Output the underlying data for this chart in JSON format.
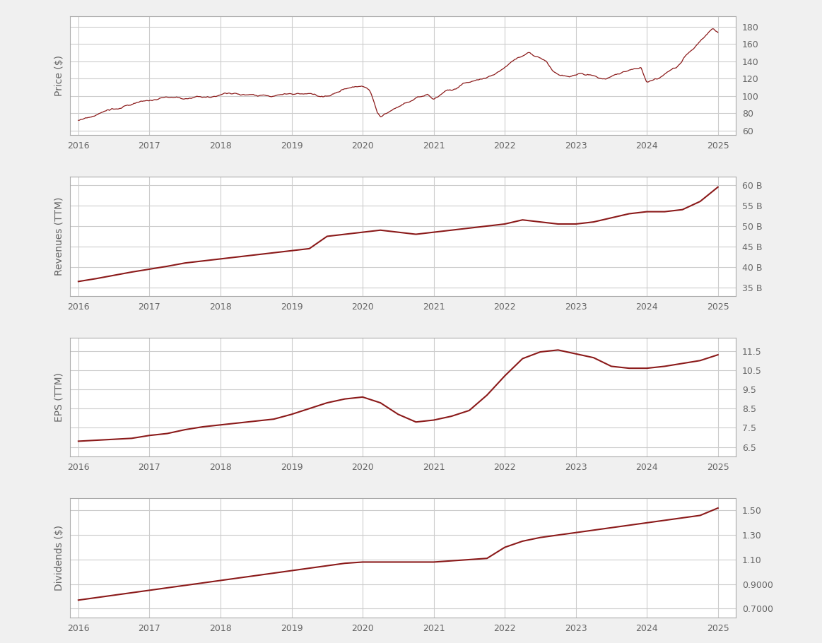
{
  "line_color": "#8B1A1A",
  "bg_color": "#f0f0f0",
  "panel_bg": "#ffffff",
  "grid_color": "#cccccc",
  "text_color": "#666666",
  "price": {
    "ylabel": "Price ($)",
    "yticks": [
      60,
      80,
      100,
      120,
      140,
      160,
      180
    ],
    "ylim": [
      55,
      192
    ],
    "noise_seed": 42,
    "base_x": [
      2016.0,
      2016.083,
      2016.167,
      2016.25,
      2016.333,
      2016.417,
      2016.5,
      2016.583,
      2016.667,
      2016.75,
      2016.833,
      2016.917,
      2017.0,
      2017.083,
      2017.167,
      2017.25,
      2017.333,
      2017.417,
      2017.5,
      2017.583,
      2017.667,
      2017.75,
      2017.833,
      2017.917,
      2018.0,
      2018.083,
      2018.167,
      2018.25,
      2018.333,
      2018.417,
      2018.5,
      2018.583,
      2018.667,
      2018.75,
      2018.833,
      2018.917,
      2019.0,
      2019.083,
      2019.167,
      2019.25,
      2019.333,
      2019.417,
      2019.5,
      2019.583,
      2019.667,
      2019.75,
      2019.833,
      2019.917,
      2020.0,
      2020.042,
      2020.083,
      2020.125,
      2020.167,
      2020.208,
      2020.25,
      2020.292,
      2020.333,
      2020.375,
      2020.417,
      2020.458,
      2020.5,
      2020.583,
      2020.667,
      2020.75,
      2020.833,
      2020.917,
      2021.0,
      2021.083,
      2021.167,
      2021.25,
      2021.333,
      2021.417,
      2021.5,
      2021.583,
      2021.667,
      2021.75,
      2021.833,
      2021.917,
      2022.0,
      2022.083,
      2022.167,
      2022.25,
      2022.333,
      2022.417,
      2022.5,
      2022.583,
      2022.667,
      2022.75,
      2022.833,
      2022.917,
      2023.0,
      2023.083,
      2023.167,
      2023.25,
      2023.333,
      2023.417,
      2023.5,
      2023.583,
      2023.667,
      2023.75,
      2023.833,
      2023.917,
      2024.0,
      2024.083,
      2024.167,
      2024.25,
      2024.333,
      2024.417,
      2024.5,
      2024.583,
      2024.667,
      2024.75,
      2024.833,
      2024.917,
      2025.0
    ],
    "base_y": [
      72,
      74,
      76,
      79,
      82,
      85,
      86,
      87,
      90,
      91,
      93,
      95,
      97,
      99,
      100,
      100,
      99,
      100,
      100,
      101,
      103,
      103,
      104,
      105,
      107,
      109,
      109,
      108,
      106,
      105,
      104,
      103,
      102,
      101,
      103,
      105,
      104,
      104,
      104,
      105,
      104,
      103,
      104,
      106,
      107,
      109,
      110,
      112,
      113,
      112,
      110,
      105,
      95,
      84,
      80,
      82,
      85,
      88,
      90,
      92,
      94,
      97,
      100,
      103,
      105,
      107,
      100,
      104,
      108,
      111,
      114,
      118,
      120,
      122,
      124,
      126,
      129,
      131,
      135,
      141,
      145,
      149,
      153,
      150,
      147,
      143,
      132,
      128,
      126,
      124,
      126,
      128,
      126,
      124,
      122,
      121,
      122,
      124,
      126,
      128,
      130,
      131,
      115,
      117,
      120,
      124,
      128,
      132,
      141,
      150,
      157,
      165,
      172,
      178,
      173
    ]
  },
  "revenues": {
    "ylabel": "Revenues (TTM)",
    "yticks": [
      35000000000,
      40000000000,
      45000000000,
      50000000000,
      55000000000,
      60000000000
    ],
    "ytick_labels": [
      "35 B",
      "40 B",
      "45 B",
      "50 B",
      "55 B",
      "60 B"
    ],
    "ylim": [
      33000000000,
      62000000000
    ],
    "data_x": [
      2016.0,
      2016.25,
      2016.5,
      2016.75,
      2017.0,
      2017.25,
      2017.5,
      2017.75,
      2018.0,
      2018.25,
      2018.5,
      2018.75,
      2019.0,
      2019.25,
      2019.5,
      2019.75,
      2020.0,
      2020.25,
      2020.5,
      2020.75,
      2021.0,
      2021.25,
      2021.5,
      2021.75,
      2022.0,
      2022.25,
      2022.5,
      2022.75,
      2023.0,
      2023.25,
      2023.5,
      2023.75,
      2024.0,
      2024.25,
      2024.5,
      2024.75,
      2025.0
    ],
    "data_y": [
      36500000000,
      37200000000,
      38000000000,
      38800000000,
      39500000000,
      40200000000,
      41000000000,
      41500000000,
      42000000000,
      42500000000,
      43000000000,
      43500000000,
      44000000000,
      44500000000,
      47500000000,
      48000000000,
      48500000000,
      49000000000,
      48500000000,
      48000000000,
      48500000000,
      49000000000,
      49500000000,
      50000000000,
      50500000000,
      51500000000,
      51000000000,
      50500000000,
      50500000000,
      51000000000,
      52000000000,
      53000000000,
      53500000000,
      53500000000,
      54000000000,
      56000000000,
      59500000000
    ]
  },
  "eps": {
    "ylabel": "EPS (TTM)",
    "yticks": [
      6.5,
      7.5,
      8.5,
      9.5,
      10.5,
      11.5
    ],
    "ylim": [
      6.0,
      12.2
    ],
    "data_x": [
      2016.0,
      2016.25,
      2016.5,
      2016.75,
      2017.0,
      2017.25,
      2017.5,
      2017.75,
      2018.0,
      2018.25,
      2018.5,
      2018.75,
      2019.0,
      2019.25,
      2019.5,
      2019.75,
      2020.0,
      2020.25,
      2020.5,
      2020.75,
      2021.0,
      2021.25,
      2021.5,
      2021.75,
      2022.0,
      2022.25,
      2022.5,
      2022.75,
      2023.0,
      2023.25,
      2023.5,
      2023.75,
      2024.0,
      2024.25,
      2024.5,
      2024.75,
      2025.0
    ],
    "data_y": [
      6.8,
      6.85,
      6.9,
      6.95,
      7.1,
      7.2,
      7.4,
      7.55,
      7.65,
      7.75,
      7.85,
      7.95,
      8.2,
      8.5,
      8.8,
      9.0,
      9.1,
      8.8,
      8.2,
      7.8,
      7.9,
      8.1,
      8.4,
      9.2,
      10.2,
      11.1,
      11.45,
      11.55,
      11.35,
      11.15,
      10.7,
      10.6,
      10.6,
      10.7,
      10.85,
      11.0,
      11.3
    ]
  },
  "dividends": {
    "ylabel": "Dividends ($)",
    "yticks": [
      0.7,
      0.9,
      1.1,
      1.3,
      1.5
    ],
    "ytick_labels": [
      "0.7000",
      "0.9000",
      "1.10",
      "1.30",
      "1.50"
    ],
    "ylim": [
      0.63,
      1.6
    ],
    "data_x": [
      2016.0,
      2016.25,
      2016.5,
      2016.75,
      2017.0,
      2017.25,
      2017.5,
      2017.75,
      2018.0,
      2018.25,
      2018.5,
      2018.75,
      2019.0,
      2019.25,
      2019.5,
      2019.75,
      2020.0,
      2020.25,
      2020.5,
      2020.75,
      2021.0,
      2021.25,
      2021.5,
      2021.75,
      2022.0,
      2022.25,
      2022.5,
      2022.75,
      2023.0,
      2023.25,
      2023.5,
      2023.75,
      2024.0,
      2024.25,
      2024.5,
      2024.75,
      2025.0
    ],
    "data_y": [
      0.77,
      0.79,
      0.81,
      0.83,
      0.85,
      0.87,
      0.89,
      0.91,
      0.93,
      0.95,
      0.97,
      0.99,
      1.01,
      1.03,
      1.05,
      1.07,
      1.08,
      1.08,
      1.08,
      1.08,
      1.08,
      1.09,
      1.1,
      1.11,
      1.2,
      1.25,
      1.28,
      1.3,
      1.32,
      1.34,
      1.36,
      1.38,
      1.4,
      1.42,
      1.44,
      1.46,
      1.52
    ]
  },
  "xlim": [
    2015.88,
    2025.25
  ],
  "xticks": [
    2016,
    2017,
    2018,
    2019,
    2020,
    2021,
    2022,
    2023,
    2024,
    2025
  ]
}
